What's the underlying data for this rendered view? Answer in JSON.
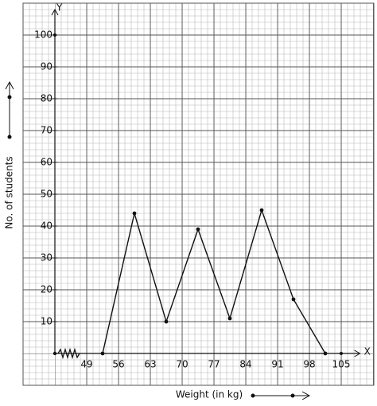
{
  "chart_data": {
    "type": "line",
    "x_label": "Weight (in kg)",
    "y_label": "No. of students",
    "x_axis_name": "X",
    "y_axis_name": "Y",
    "x": [
      52.5,
      59.5,
      66.5,
      73.5,
      80.5,
      87.5,
      94.5,
      101.5
    ],
    "series": [
      {
        "color": "#111111",
        "values": [
          0,
          44,
          10,
          39,
          11,
          45,
          17,
          0
        ]
      }
    ],
    "xlim": [
      42,
      110
    ],
    "ylim": [
      -10,
      110
    ],
    "xticks": [
      49,
      56,
      63,
      70,
      77,
      84,
      91,
      98,
      105
    ],
    "yticks": [
      10,
      20,
      30,
      40,
      50,
      60,
      70,
      80,
      90,
      100
    ],
    "grid": true
  }
}
